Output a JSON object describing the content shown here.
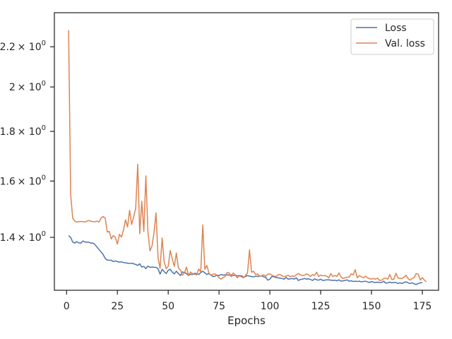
{
  "chart_data": {
    "type": "line",
    "xlabel": "Epochs",
    "ylabel": "",
    "xlim": [
      -6,
      183
    ],
    "ylim": [
      1.235,
      2.385
    ],
    "y_scale": "log",
    "grid": false,
    "legend_position": "top-right",
    "x_ticks": [
      {
        "value": 0,
        "label": "0"
      },
      {
        "value": 25,
        "label": "25"
      },
      {
        "value": 50,
        "label": "50"
      },
      {
        "value": 75,
        "label": "75"
      },
      {
        "value": 100,
        "label": "100"
      },
      {
        "value": 125,
        "label": "125"
      },
      {
        "value": 150,
        "label": "150"
      },
      {
        "value": 175,
        "label": "175"
      }
    ],
    "y_ticks": [
      {
        "value": 1.4,
        "label": "1.4",
        "base": "× 10",
        "exp": "0"
      },
      {
        "value": 1.6,
        "label": "1.6",
        "base": "× 10",
        "exp": "0"
      },
      {
        "value": 1.8,
        "label": "1.8",
        "base": "× 10",
        "exp": "0"
      },
      {
        "value": 2.0,
        "label": "2",
        "base": "× 10",
        "exp": "0"
      },
      {
        "value": 2.2,
        "label": "2.2",
        "base": "× 10",
        "exp": "0"
      }
    ],
    "x_start": 1,
    "series": [
      {
        "name": "Loss",
        "color": "#4c72b0",
        "values": [
          1.406,
          1.4,
          1.385,
          1.381,
          1.386,
          1.382,
          1.381,
          1.388,
          1.385,
          1.384,
          1.384,
          1.381,
          1.381,
          1.376,
          1.368,
          1.36,
          1.352,
          1.344,
          1.332,
          1.327,
          1.326,
          1.326,
          1.322,
          1.324,
          1.322,
          1.32,
          1.321,
          1.319,
          1.318,
          1.317,
          1.316,
          1.317,
          1.315,
          1.313,
          1.31,
          1.315,
          1.305,
          1.307,
          1.3,
          1.308,
          1.304,
          1.305,
          1.304,
          1.304,
          1.3,
          1.283,
          1.298,
          1.291,
          1.285,
          1.295,
          1.298,
          1.289,
          1.284,
          1.292,
          1.285,
          1.279,
          1.29,
          1.288,
          1.285,
          1.279,
          1.283,
          1.282,
          1.286,
          1.284,
          1.282,
          1.288,
          1.292,
          1.287,
          1.282,
          1.285,
          1.28,
          1.276,
          1.277,
          1.28,
          1.279,
          1.282,
          1.28,
          1.281,
          1.281,
          1.28,
          1.281,
          1.279,
          1.28,
          1.278,
          1.279,
          1.278,
          1.274,
          1.276,
          1.279,
          1.277,
          1.276,
          1.275,
          1.277,
          1.276,
          1.277,
          1.278,
          1.275,
          1.273,
          1.265,
          1.268,
          1.276,
          1.275,
          1.273,
          1.272,
          1.271,
          1.27,
          1.268,
          1.273,
          1.268,
          1.269,
          1.27,
          1.268,
          1.272,
          1.264,
          1.267,
          1.268,
          1.27,
          1.268,
          1.269,
          1.267,
          1.264,
          1.269,
          1.266,
          1.265,
          1.268,
          1.264,
          1.265,
          1.266,
          1.266,
          1.265,
          1.264,
          1.265,
          1.263,
          1.266,
          1.262,
          1.263,
          1.264,
          1.266,
          1.262,
          1.263,
          1.261,
          1.262,
          1.261,
          1.262,
          1.26,
          1.261,
          1.262,
          1.26,
          1.258,
          1.261,
          1.259,
          1.258,
          1.259,
          1.258,
          1.258,
          1.262,
          1.256,
          1.257,
          1.259,
          1.257,
          1.258,
          1.258,
          1.255,
          1.257,
          1.255,
          1.258,
          1.26,
          1.257,
          1.255,
          1.257,
          1.254,
          1.252,
          1.255,
          1.257,
          1.258
        ]
      },
      {
        "name": "Val. loss",
        "color": "#dd8452",
        "values": [
          2.288,
          1.551,
          1.466,
          1.455,
          1.452,
          1.453,
          1.454,
          1.453,
          1.452,
          1.455,
          1.457,
          1.455,
          1.453,
          1.453,
          1.455,
          1.452,
          1.466,
          1.471,
          1.466,
          1.418,
          1.42,
          1.395,
          1.406,
          1.4,
          1.378,
          1.41,
          1.401,
          1.425,
          1.46,
          1.435,
          1.493,
          1.443,
          1.47,
          1.5,
          1.665,
          1.412,
          1.525,
          1.42,
          1.62,
          1.42,
          1.356,
          1.371,
          1.415,
          1.484,
          1.333,
          1.301,
          1.398,
          1.321,
          1.3,
          1.307,
          1.357,
          1.331,
          1.307,
          1.349,
          1.302,
          1.296,
          1.28,
          1.287,
          1.305,
          1.279,
          1.29,
          1.284,
          1.283,
          1.281,
          1.299,
          1.29,
          1.442,
          1.298,
          1.31,
          1.287,
          1.28,
          1.283,
          1.284,
          1.28,
          1.272,
          1.268,
          1.273,
          1.276,
          1.288,
          1.287,
          1.275,
          1.287,
          1.28,
          1.272,
          1.278,
          1.275,
          1.272,
          1.279,
          1.287,
          1.359,
          1.289,
          1.292,
          1.282,
          1.284,
          1.276,
          1.279,
          1.281,
          1.277,
          1.283,
          1.284,
          1.28,
          1.277,
          1.276,
          1.281,
          1.282,
          1.278,
          1.275,
          1.277,
          1.28,
          1.275,
          1.278,
          1.276,
          1.281,
          1.285,
          1.281,
          1.279,
          1.28,
          1.284,
          1.281,
          1.276,
          1.282,
          1.279,
          1.289,
          1.276,
          1.28,
          1.278,
          1.279,
          1.277,
          1.272,
          1.285,
          1.276,
          1.279,
          1.276,
          1.287,
          1.274,
          1.27,
          1.272,
          1.274,
          1.274,
          1.284,
          1.281,
          1.297,
          1.272,
          1.279,
          1.275,
          1.272,
          1.277,
          1.272,
          1.27,
          1.268,
          1.27,
          1.268,
          1.271,
          1.264,
          1.265,
          1.27,
          1.271,
          1.268,
          1.282,
          1.267,
          1.268,
          1.286,
          1.272,
          1.27,
          1.27,
          1.274,
          1.28,
          1.27,
          1.265,
          1.27,
          1.273,
          1.285,
          1.283,
          1.265,
          1.273,
          1.265,
          1.26
        ]
      }
    ]
  }
}
